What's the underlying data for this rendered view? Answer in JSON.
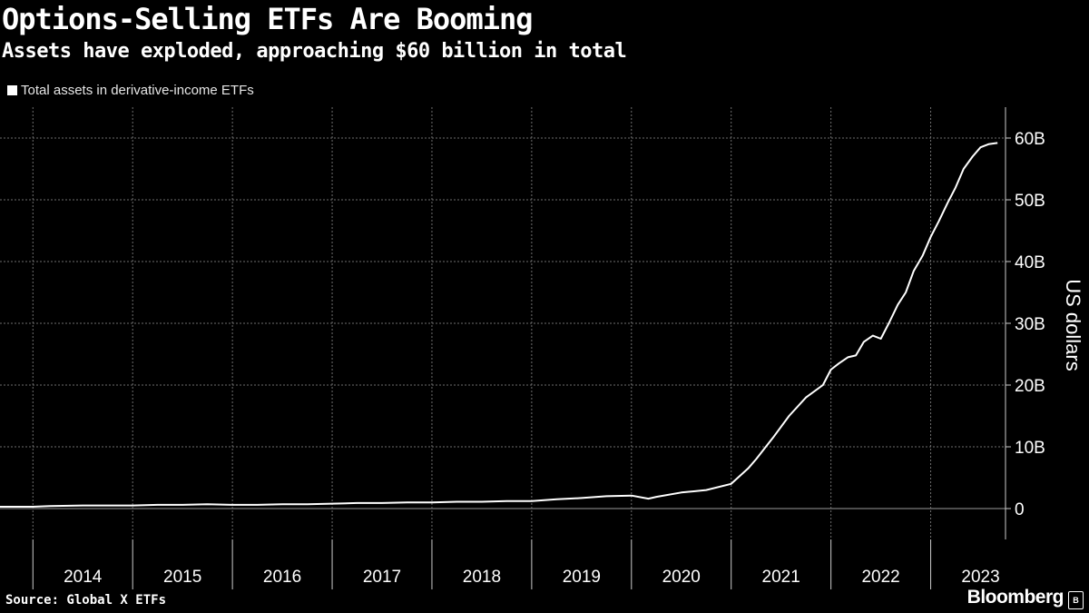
{
  "header": {
    "title": "Options-Selling ETFs Are Booming",
    "subtitle": "Assets have exploded, approaching $60 billion in total"
  },
  "footer": {
    "source": "Source: Global X ETFs",
    "brand": "Bloomberg"
  },
  "colors": {
    "background": "#000000",
    "line": "#ffffff",
    "grid": "#6e6e6e",
    "text": "#ffffff"
  },
  "chart_data": {
    "type": "line",
    "title": "Options-Selling ETFs Are Booming",
    "subtitle": "Assets have exploded, approaching $60 billion in total",
    "ylabel": "US dollars",
    "xlabel": "",
    "ylim": [
      -5,
      65
    ],
    "xlim": [
      2013.67,
      2023.75
    ],
    "yticks": [
      0,
      10,
      20,
      30,
      40,
      50,
      60
    ],
    "ytick_labels": [
      "0",
      "10B",
      "20B",
      "30B",
      "40B",
      "50B",
      "60B"
    ],
    "xticks": [
      2014,
      2015,
      2016,
      2017,
      2018,
      2019,
      2020,
      2021,
      2022,
      2023
    ],
    "xtick_labels": [
      "2014",
      "2015",
      "2016",
      "2017",
      "2018",
      "2019",
      "2020",
      "2021",
      "2022",
      "2023"
    ],
    "grid": true,
    "legend_position": "top-left",
    "series": [
      {
        "name": "Total assets in derivative-income ETFs",
        "x": [
          2013.67,
          2014.0,
          2014.17,
          2014.5,
          2014.83,
          2015.0,
          2015.25,
          2015.5,
          2015.75,
          2016.0,
          2016.25,
          2016.5,
          2016.75,
          2017.0,
          2017.25,
          2017.5,
          2017.75,
          2018.0,
          2018.25,
          2018.5,
          2018.75,
          2019.0,
          2019.25,
          2019.5,
          2019.75,
          2020.0,
          2020.17,
          2020.25,
          2020.5,
          2020.75,
          2021.0,
          2021.17,
          2021.25,
          2021.42,
          2021.58,
          2021.75,
          2021.92,
          2022.0,
          2022.08,
          2022.17,
          2022.25,
          2022.33,
          2022.42,
          2022.5,
          2022.58,
          2022.67,
          2022.75,
          2022.83,
          2022.92,
          2023.0,
          2023.08,
          2023.17,
          2023.25,
          2023.33,
          2023.42,
          2023.5,
          2023.58,
          2023.67
        ],
        "values": [
          0.3,
          0.3,
          0.4,
          0.5,
          0.5,
          0.5,
          0.6,
          0.6,
          0.7,
          0.6,
          0.6,
          0.7,
          0.7,
          0.8,
          0.9,
          0.9,
          1.0,
          1.0,
          1.1,
          1.1,
          1.2,
          1.2,
          1.5,
          1.7,
          2.0,
          2.1,
          1.6,
          1.9,
          2.6,
          3.0,
          4.0,
          6.5,
          8.0,
          11.5,
          15.0,
          18.0,
          20.0,
          22.5,
          23.5,
          24.5,
          24.8,
          27.0,
          28.0,
          27.5,
          30.0,
          33.0,
          35.0,
          38.5,
          41.0,
          44.0,
          46.5,
          49.5,
          52.0,
          55.0,
          57.0,
          58.5,
          59.0,
          59.2
        ]
      }
    ]
  }
}
